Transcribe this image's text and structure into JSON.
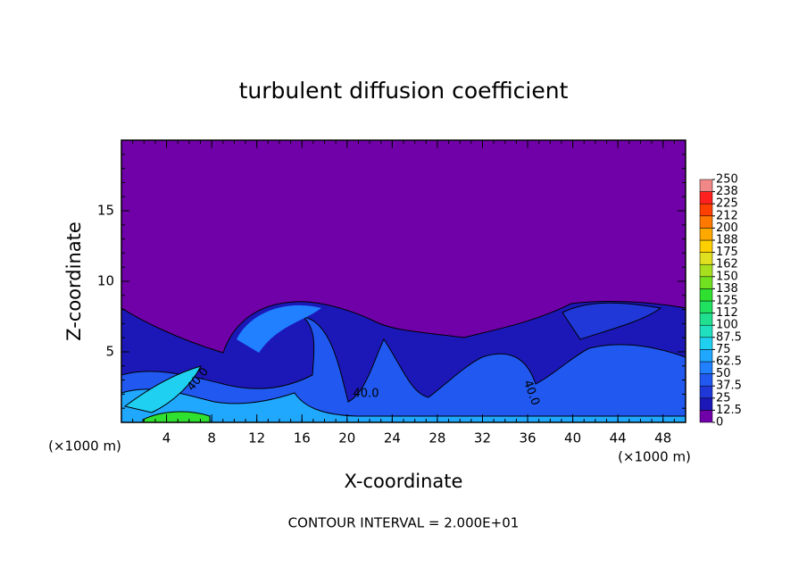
{
  "chart_data": {
    "type": "contour",
    "title": "turbulent diffusion coefficient",
    "xlabel": "X-coordinate",
    "ylabel": "Z-coordinate",
    "x_unit_label": "(×1000 m)",
    "footer": "CONTOUR INTERVAL = 2.000E+01",
    "contour_labels": [
      "40.0",
      "40.0",
      "40.0"
    ],
    "xlim": [
      0,
      50
    ],
    "xticks": [
      4,
      8,
      12,
      16,
      20,
      24,
      28,
      32,
      36,
      40,
      44,
      48
    ],
    "ylim": [
      0,
      20
    ],
    "yticks": [
      5,
      10,
      15
    ],
    "levels": [
      0,
      12.5,
      25,
      37.5,
      50,
      62.5,
      75,
      87.5,
      100,
      {
        "value": 112.5,
        "label": "112"
      },
      125,
      {
        "value": 137.5,
        "label": "138"
      },
      150,
      {
        "value": 162.5,
        "label": "162"
      },
      175,
      {
        "value": 187.5,
        "label": "188"
      },
      200,
      {
        "value": 212.5,
        "label": "212"
      },
      225,
      {
        "value": 237.5,
        "label": "238"
      },
      250
    ],
    "colors": [
      "#7000a8",
      "#1c18b8",
      "#2038d8",
      "#2058f0",
      "#2080ff",
      "#20a8ff",
      "#20d0f0",
      "#20e0c0",
      "#20e090",
      "#20e060",
      "#30e030",
      "#70e020",
      "#a8e020",
      "#e0e020",
      "#ffd000",
      "#ffa800",
      "#ff7800",
      "#ff4000",
      "#ff2020",
      "#f08888"
    ]
  }
}
